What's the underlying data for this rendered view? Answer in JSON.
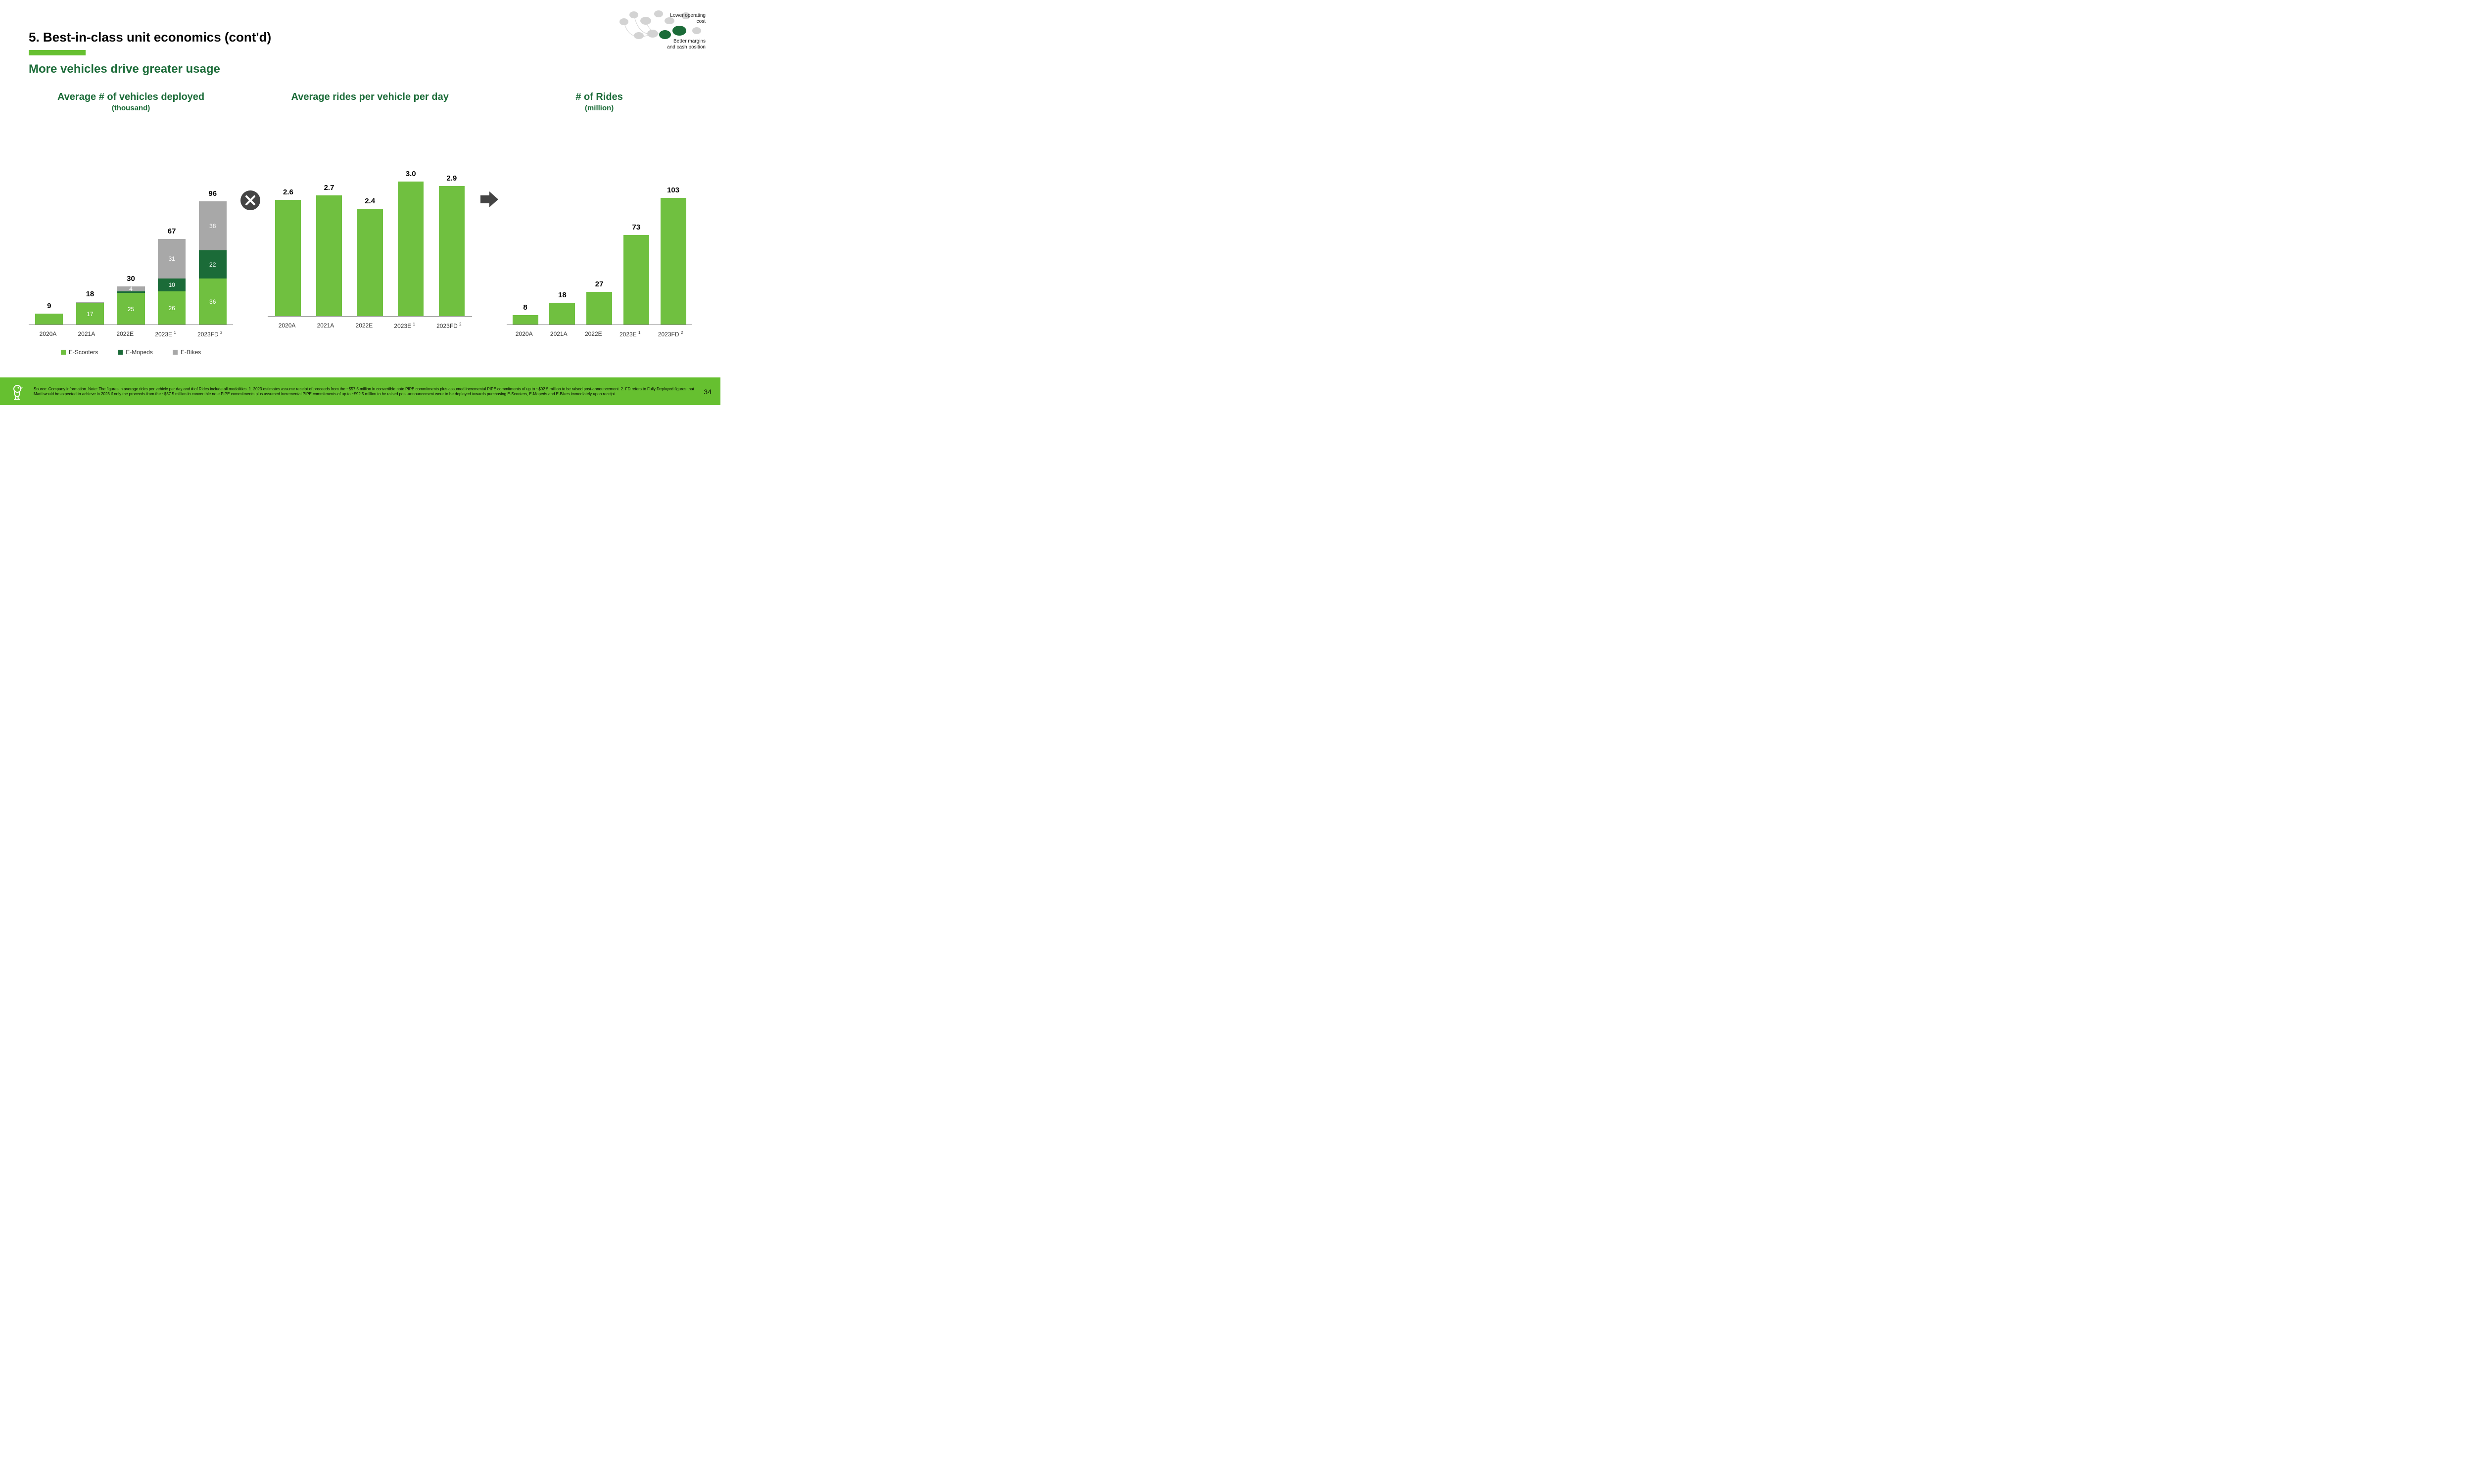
{
  "header": {
    "title": "5. Best-in-class unit economics (cont'd)",
    "underline_color": "#66c030",
    "subtitle": "More vehicles drive greater usage",
    "title_color": "#000000",
    "subtitle_color": "#1b6b38"
  },
  "corner": {
    "label1": "Lower operating cost",
    "label2": "Better margins and cash position",
    "bubble_grey": "#d3d3d3",
    "bubble_green": "#1b6b38"
  },
  "colors": {
    "green_light": "#70c040",
    "green_dark": "#1b6b38",
    "grey": "#a8a8a8",
    "baseline": "#888888",
    "operator_bg": "#444444",
    "footer_bg": "#66c030"
  },
  "chart1": {
    "title": "Average # of vehicles deployed",
    "subtitle": "(thousand)",
    "type": "stacked-bar",
    "max": 100,
    "categories": [
      "2020A",
      "2021A",
      "2022E",
      "2023E ¹",
      "2023FD ²"
    ],
    "totals": [
      "9",
      "18",
      "30",
      "67",
      "96"
    ],
    "series": [
      {
        "name": "E-Scooters",
        "color": "#70c040"
      },
      {
        "name": "E-Mopeds",
        "color": "#1b6b38"
      },
      {
        "name": "E-Bikes",
        "color": "#a8a8a8"
      }
    ],
    "stacks": [
      {
        "segments": [
          {
            "v": 9,
            "label": "",
            "c": "#70c040"
          }
        ]
      },
      {
        "segments": [
          {
            "v": 17,
            "label": "17",
            "c": "#70c040"
          },
          {
            "v": 1,
            "label": "",
            "c": "#a8a8a8"
          }
        ]
      },
      {
        "segments": [
          {
            "v": 25,
            "label": "25",
            "c": "#70c040"
          },
          {
            "v": 1,
            "label": "",
            "c": "#1b6b38"
          },
          {
            "v": 4,
            "label": "4",
            "c": "#a8a8a8"
          }
        ]
      },
      {
        "segments": [
          {
            "v": 26,
            "label": "26",
            "c": "#70c040"
          },
          {
            "v": 10,
            "label": "10",
            "c": "#1b6b38"
          },
          {
            "v": 31,
            "label": "31",
            "c": "#a8a8a8"
          }
        ]
      },
      {
        "segments": [
          {
            "v": 36,
            "label": "36",
            "c": "#70c040"
          },
          {
            "v": 22,
            "label": "22",
            "c": "#1b6b38"
          },
          {
            "v": 38,
            "label": "38",
            "c": "#a8a8a8"
          }
        ]
      }
    ],
    "legend": [
      "E-Scooters",
      "E-Mopeds",
      "E-Bikes"
    ]
  },
  "chart2": {
    "title": "Average rides per vehicle per day",
    "subtitle": "",
    "type": "bar",
    "max": 3.3,
    "color": "#70c040",
    "categories": [
      "2020A",
      "2021A",
      "2022E",
      "2023E ¹",
      "2023FD ²"
    ],
    "values": [
      2.6,
      2.7,
      2.4,
      3.0,
      2.9
    ],
    "labels": [
      "2.6",
      "2.7",
      "2.4",
      "3.0",
      "2.9"
    ]
  },
  "chart3": {
    "title": "# of Rides",
    "subtitle": "(million)",
    "type": "bar",
    "max": 110,
    "color": "#70c040",
    "categories": [
      "2020A",
      "2021A",
      "2022E",
      "2023E ¹",
      "2023FD ²"
    ],
    "values": [
      8,
      18,
      27,
      73,
      103
    ],
    "labels": [
      "8",
      "18",
      "27",
      "73",
      "103"
    ]
  },
  "footer": {
    "text": "Source: Company information. Note: The figures in average rides per vehicle per day and # of Rides include all modalities. 1. 2023 estimates assume receipt of proceeds from the ~$57.5 million in convertible note PIPE commitments plus assumed incremental PIPE commitments of up to ~$92.5 million to be raised post-announcement. 2. FD refers to Fully Deployed figures that Marti would be expected to achieve in 2023 if only the proceeds from the ~$57.5 million in convertible note PIPE commitments plus assumed incremental PIPE commitments of up to ~$92.5 million to be raised post-announcement were to be deployed towards purchasing  E-Scooters, E-Mopeds and E-Bikes immediately upon receipt.",
    "page": "34"
  }
}
